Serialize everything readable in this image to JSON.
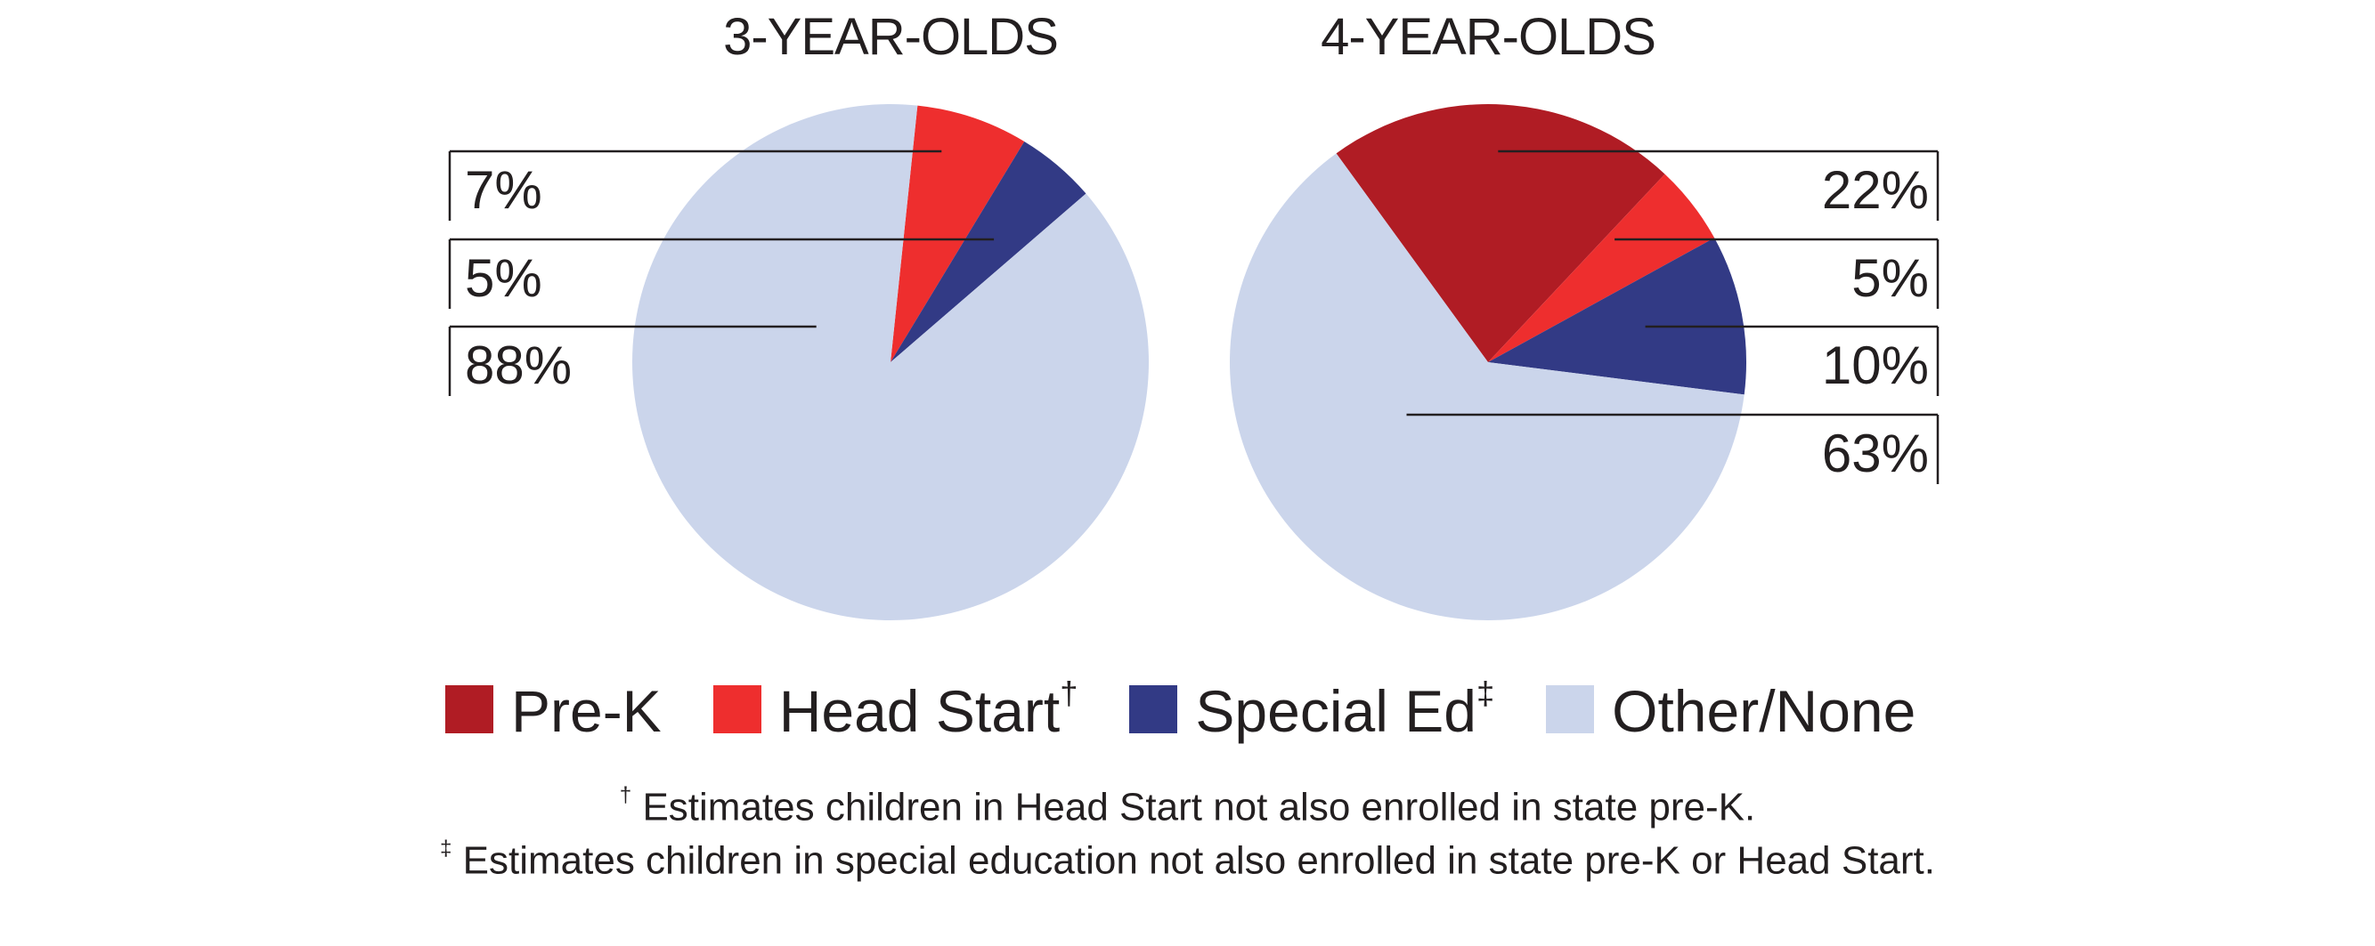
{
  "chart_data": [
    {
      "type": "pie",
      "title": "3-YEAR-OLDS",
      "categories": [
        "Pre-K",
        "Head Start",
        "Special Ed",
        "Other/None"
      ],
      "values": [
        0,
        7,
        5,
        88
      ],
      "value_labels": [
        "",
        "7%",
        "5%",
        "88%"
      ],
      "label_side": "left"
    },
    {
      "type": "pie",
      "title": "4-YEAR-OLDS",
      "categories": [
        "Pre-K",
        "Head Start",
        "Special Ed",
        "Other/None"
      ],
      "values": [
        22,
        5,
        10,
        63
      ],
      "value_labels": [
        "22%",
        "5%",
        "10%",
        "63%"
      ],
      "label_side": "right"
    }
  ],
  "legend": {
    "placement": "bottom",
    "items": [
      {
        "label": "Pre-K",
        "mark": "",
        "color": "#b01c24"
      },
      {
        "label": "Head Start",
        "mark": "†",
        "color": "#ee2e2e"
      },
      {
        "label": "Special Ed",
        "mark": "‡",
        "color": "#323a85"
      },
      {
        "label": "Other/None",
        "mark": "",
        "color": "#cbd5eb"
      }
    ]
  },
  "footnotes": [
    {
      "mark": "†",
      "text": " Estimates children in Head Start not also enrolled in state pre-K."
    },
    {
      "mark": "‡",
      "text": " Estimates children in special education not also enrolled in state pre-K or Head Start."
    }
  ]
}
